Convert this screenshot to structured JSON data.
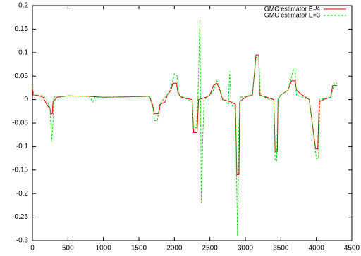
{
  "chart_data": {
    "type": "line",
    "xlim": [
      0,
      4500
    ],
    "xticks": [
      0,
      500,
      1000,
      1500,
      2000,
      2500,
      3000,
      3500,
      4000,
      4500
    ],
    "ylim": [
      -0.3,
      0.2
    ],
    "yticks": [
      -0.3,
      -0.25,
      -0.2,
      -0.15,
      -0.1,
      -0.05,
      0,
      0.05,
      0.1,
      0.15,
      0.2
    ],
    "grid": false,
    "legend": "top-right",
    "series": [
      {
        "name": "GMC estimator E=4",
        "color": "#e00000",
        "dash": false,
        "x": [
          0,
          10,
          100,
          150,
          200,
          250,
          260,
          280,
          290,
          350,
          500,
          800,
          1000,
          1400,
          1650,
          1690,
          1720,
          1780,
          1800,
          1870,
          1900,
          1950,
          1980,
          2030,
          2050,
          2100,
          2250,
          2270,
          2320,
          2340,
          2450,
          2500,
          2550,
          2600,
          2640,
          2680,
          2800,
          2860,
          2880,
          2910,
          2920,
          3000,
          3100,
          3150,
          3190,
          3200,
          3300,
          3400,
          3420,
          3450,
          3460,
          3500,
          3600,
          3650,
          3700,
          3720,
          3800,
          3900,
          3990,
          4020,
          4040,
          4100,
          4200,
          4230,
          4290
        ],
        "values": [
          0.03,
          0.01,
          0.008,
          0.005,
          -0.01,
          -0.02,
          -0.03,
          -0.03,
          -0.005,
          0.005,
          0.008,
          0.007,
          0.005,
          0.006,
          0.007,
          -0.01,
          -0.03,
          -0.03,
          -0.01,
          -0.005,
          0.01,
          0.02,
          0.035,
          0.035,
          0.015,
          0.005,
          0,
          -0.07,
          -0.07,
          0,
          0.005,
          0.01,
          0.03,
          0.035,
          0.02,
          0,
          -0.005,
          -0.01,
          -0.16,
          -0.16,
          -0.005,
          0.005,
          0.01,
          0.095,
          0.095,
          0.01,
          0.005,
          0,
          -0.11,
          -0.11,
          0,
          0.01,
          0.02,
          0.04,
          0.04,
          0.02,
          0.01,
          0,
          -0.105,
          -0.105,
          -0.005,
          0,
          0.005,
          0.03,
          0.03
        ]
      },
      {
        "name": "GMC estimator E=3",
        "color": "#00dd00",
        "dash": true,
        "x": [
          0,
          20,
          150,
          200,
          250,
          270,
          290,
          300,
          500,
          800,
          850,
          880,
          1000,
          1650,
          1700,
          1720,
          1760,
          1790,
          1900,
          1960,
          2000,
          2040,
          2060,
          2250,
          2270,
          2310,
          2330,
          2360,
          2380,
          2400,
          2420,
          2500,
          2550,
          2600,
          2630,
          2680,
          2760,
          2780,
          2800,
          2860,
          2890,
          2910,
          2930,
          3100,
          3150,
          3190,
          3210,
          3400,
          3420,
          3440,
          3460,
          3500,
          3600,
          3680,
          3700,
          3720,
          3900,
          4000,
          4030,
          4050,
          4200,
          4260,
          4290
        ],
        "values": [
          0.025,
          0.01,
          0.008,
          0,
          -0.02,
          -0.09,
          -0.05,
          0.005,
          0.008,
          0.007,
          -0.005,
          0.005,
          0.005,
          0.007,
          -0.02,
          -0.045,
          -0.045,
          -0.01,
          0.01,
          0.03,
          0.055,
          0.05,
          0.01,
          -0.005,
          -0.06,
          -0.06,
          -0.005,
          0.17,
          -0.22,
          -0.08,
          0,
          0.01,
          0.02,
          0.04,
          0.03,
          0,
          -0.01,
          0.06,
          -0.01,
          -0.02,
          -0.29,
          -0.05,
          0.005,
          0.01,
          0.09,
          0.09,
          0.01,
          -0.005,
          -0.13,
          -0.13,
          0,
          0.01,
          0.02,
          0.065,
          0.065,
          0.01,
          0,
          -0.125,
          -0.125,
          0,
          0.005,
          0.035,
          0.035
        ]
      }
    ]
  }
}
